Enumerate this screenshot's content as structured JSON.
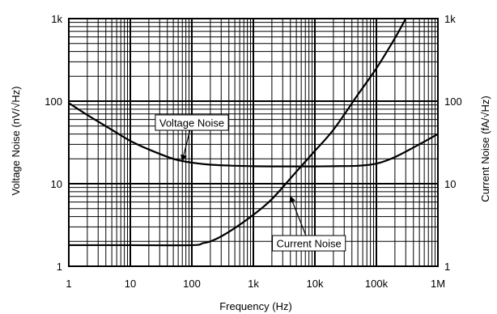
{
  "chart_data": {
    "type": "line",
    "title": "",
    "xlabel": "Frequency (Hz)",
    "ylabel_left": "Voltage Noise (nV/√Hz)",
    "ylabel_right": "Current Noise (fA/√Hz)",
    "x_scale": "log",
    "y_scale": "log",
    "xlim": [
      1,
      1000000
    ],
    "ylim": [
      1,
      1000
    ],
    "grid": true,
    "x_ticks": [
      {
        "value": 1,
        "label": "1"
      },
      {
        "value": 10,
        "label": "10"
      },
      {
        "value": 100,
        "label": "100"
      },
      {
        "value": 1000,
        "label": "1k"
      },
      {
        "value": 10000,
        "label": "10k"
      },
      {
        "value": 100000,
        "label": "100k"
      },
      {
        "value": 1000000,
        "label": "1M"
      }
    ],
    "y_ticks": [
      {
        "value": 1,
        "label": "1"
      },
      {
        "value": 10,
        "label": "10"
      },
      {
        "value": 100,
        "label": "100"
      },
      {
        "value": 1000,
        "label": "1k"
      }
    ],
    "series": [
      {
        "name": "Voltage Noise",
        "x": [
          1,
          2,
          5,
          10,
          20,
          50,
          100,
          200,
          500,
          1000,
          2000,
          5000,
          10000,
          20000,
          50000,
          100000,
          200000,
          500000,
          1000000
        ],
        "y": [
          95,
          68,
          45,
          33,
          26,
          20,
          18,
          17,
          16.5,
          16.3,
          16.2,
          16.2,
          16.2,
          16.3,
          16.5,
          17.5,
          21,
          30,
          40
        ]
      },
      {
        "name": "Current Noise",
        "x": [
          1,
          10,
          100,
          150,
          200,
          300,
          500,
          1000,
          2000,
          5000,
          10000,
          20000,
          50000,
          100000,
          200000,
          300000
        ],
        "y": [
          1.8,
          1.8,
          1.8,
          1.9,
          2.0,
          2.3,
          2.9,
          4.2,
          6.5,
          14,
          25,
          45,
          120,
          250,
          580,
          1000
        ]
      }
    ],
    "annotations": [
      {
        "text": "Voltage Noise",
        "series": "Voltage Noise",
        "box_x": 100,
        "box_y": 55,
        "point_x": 70,
        "point_y": 19
      },
      {
        "text": "Current Noise",
        "series": "Current Noise",
        "box_x": 8000,
        "box_y": 1.9,
        "point_x": 4000,
        "point_y": 7
      }
    ]
  }
}
